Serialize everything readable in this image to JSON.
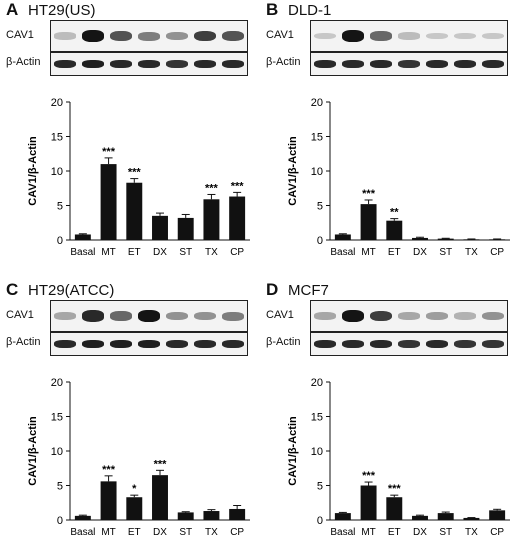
{
  "panels": [
    {
      "letter": "A",
      "cell_line": "HT29(US)",
      "blot_labels": [
        "CAV1",
        "β-Actin"
      ],
      "chart_data": {
        "type": "bar",
        "categories": [
          "Basal",
          "MT",
          "ET",
          "DX",
          "ST",
          "TX",
          "CP"
        ],
        "values": [
          0.8,
          11.0,
          8.3,
          3.5,
          3.2,
          5.9,
          6.3
        ],
        "errors": [
          0.1,
          0.9,
          0.6,
          0.4,
          0.5,
          0.7,
          0.6
        ],
        "significance": [
          "",
          "***",
          "***",
          "",
          "",
          "***",
          "***"
        ],
        "ylabel": "CAV1/β-Actin",
        "ylim": [
          0,
          20
        ],
        "yticks": [
          0,
          5,
          10,
          15,
          20
        ]
      },
      "bands": {
        "cav1": [
          0.2,
          1.0,
          0.7,
          0.5,
          0.4,
          0.8,
          0.7
        ],
        "actin": [
          0.9,
          0.95,
          0.9,
          0.9,
          0.85,
          0.9,
          0.9
        ]
      }
    },
    {
      "letter": "B",
      "cell_line": "DLD-1",
      "blot_labels": [
        "CAV1",
        "β-Actin"
      ],
      "chart_data": {
        "type": "bar",
        "categories": [
          "Basal",
          "MT",
          "ET",
          "DX",
          "ST",
          "TX",
          "CP"
        ],
        "values": [
          0.8,
          5.2,
          2.8,
          0.3,
          0.2,
          0.1,
          0.1
        ],
        "errors": [
          0.1,
          0.6,
          0.3,
          0.1,
          0.05,
          0.05,
          0.05
        ],
        "significance": [
          "",
          "***",
          "**",
          "",
          "",
          "",
          ""
        ],
        "ylabel": "CAV1/β-Actin",
        "ylim": [
          0,
          20
        ],
        "yticks": [
          0,
          5,
          10,
          15,
          20
        ]
      },
      "bands": {
        "cav1": [
          0.15,
          1.0,
          0.6,
          0.2,
          0.15,
          0.15,
          0.15
        ],
        "actin": [
          0.9,
          0.9,
          0.9,
          0.85,
          0.9,
          0.9,
          0.9
        ]
      }
    },
    {
      "letter": "C",
      "cell_line": "HT29(ATCC)",
      "blot_labels": [
        "CAV1",
        "β-Actin"
      ],
      "chart_data": {
        "type": "bar",
        "categories": [
          "Basal",
          "MT",
          "ET",
          "DX",
          "ST",
          "TX",
          "CP"
        ],
        "values": [
          0.6,
          5.6,
          3.3,
          6.5,
          1.1,
          1.3,
          1.6
        ],
        "errors": [
          0.1,
          0.8,
          0.3,
          0.7,
          0.1,
          0.2,
          0.5
        ],
        "significance": [
          "",
          "***",
          "*",
          "***",
          "",
          "",
          ""
        ],
        "ylabel": "CAV1/β-Actin",
        "ylim": [
          0,
          20
        ],
        "yticks": [
          0,
          5,
          10,
          15,
          20
        ]
      },
      "bands": {
        "cav1": [
          0.3,
          0.9,
          0.6,
          1.0,
          0.4,
          0.4,
          0.5
        ],
        "actin": [
          0.9,
          0.95,
          0.95,
          0.95,
          0.9,
          0.9,
          0.9
        ]
      }
    },
    {
      "letter": "D",
      "cell_line": "MCF7",
      "blot_labels": [
        "CAV1",
        "β-Actin"
      ],
      "chart_data": {
        "type": "bar",
        "categories": [
          "Basal",
          "MT",
          "ET",
          "DX",
          "ST",
          "TX",
          "CP"
        ],
        "values": [
          1.0,
          5.0,
          3.3,
          0.6,
          1.0,
          0.3,
          1.4
        ],
        "errors": [
          0.1,
          0.5,
          0.3,
          0.1,
          0.15,
          0.05,
          0.15
        ],
        "significance": [
          "",
          "***",
          "***",
          "",
          "",
          "",
          ""
        ],
        "ylabel": "CAV1/β-Actin",
        "ylim": [
          0,
          20
        ],
        "yticks": [
          0,
          5,
          10,
          15,
          20
        ]
      },
      "bands": {
        "cav1": [
          0.3,
          1.0,
          0.8,
          0.3,
          0.35,
          0.25,
          0.4
        ],
        "actin": [
          0.9,
          0.9,
          0.9,
          0.85,
          0.9,
          0.85,
          0.85
        ]
      }
    }
  ]
}
